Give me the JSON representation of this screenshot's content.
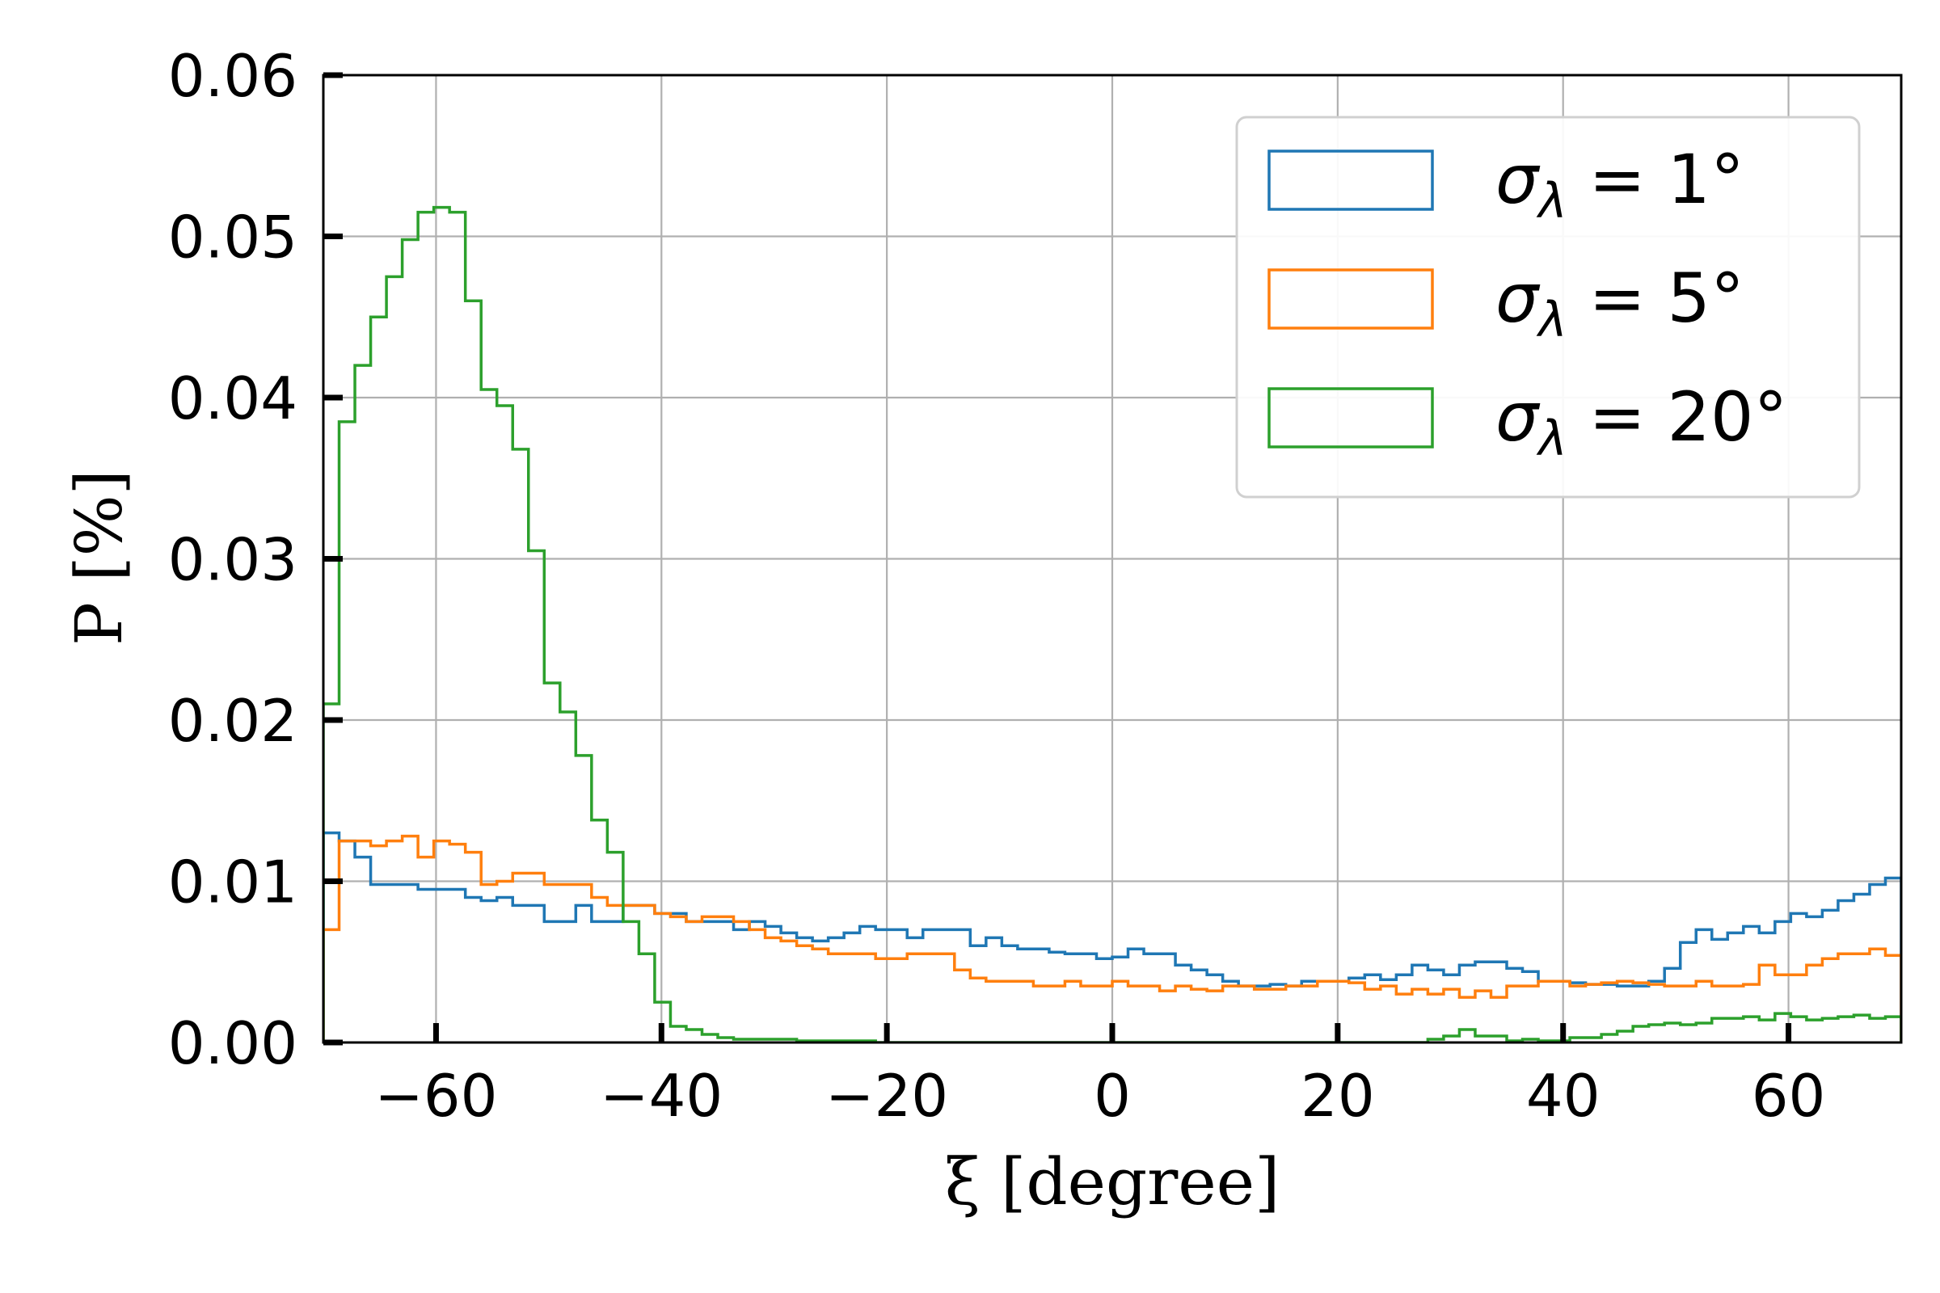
{
  "chart_data": {
    "type": "histogram",
    "xlabel": "ξ [degree]",
    "ylabel": "P [%]",
    "xlim": [
      -70,
      70
    ],
    "ylim": [
      0,
      0.06
    ],
    "xticks": [
      -60,
      -40,
      -20,
      0,
      20,
      40,
      60
    ],
    "yticks": [
      0.0,
      0.01,
      0.02,
      0.03,
      0.04,
      0.05,
      0.06
    ],
    "grid": true,
    "legend_position": "top-right",
    "bins": {
      "start": -70,
      "end": 70,
      "count": 100
    },
    "series": [
      {
        "name": "σ_λ = 1°",
        "color": "#1f77b4",
        "values": [
          0.013,
          0.0125,
          0.0115,
          0.0098,
          0.0098,
          0.0098,
          0.0095,
          0.0095,
          0.0095,
          0.009,
          0.0088,
          0.009,
          0.0085,
          0.0085,
          0.0075,
          0.0075,
          0.0085,
          0.0075,
          0.0075,
          0.0085,
          0.0085,
          0.008,
          0.008,
          0.0075,
          0.0075,
          0.0075,
          0.007,
          0.0075,
          0.0072,
          0.0068,
          0.0065,
          0.0063,
          0.0065,
          0.0068,
          0.0072,
          0.007,
          0.007,
          0.0065,
          0.007,
          0.007,
          0.007,
          0.006,
          0.0065,
          0.006,
          0.0058,
          0.0058,
          0.0056,
          0.0055,
          0.0055,
          0.0052,
          0.0053,
          0.0058,
          0.0055,
          0.0055,
          0.0048,
          0.0045,
          0.0042,
          0.0038,
          0.0035,
          0.0035,
          0.0036,
          0.0035,
          0.0038,
          0.0038,
          0.0038,
          0.004,
          0.0042,
          0.0039,
          0.0042,
          0.0048,
          0.0045,
          0.0042,
          0.0048,
          0.005,
          0.005,
          0.0046,
          0.0044,
          0.0038,
          0.0038,
          0.0037,
          0.0036,
          0.0036,
          0.0035,
          0.0035,
          0.0038,
          0.0046,
          0.0062,
          0.007,
          0.0064,
          0.0068,
          0.0072,
          0.0068,
          0.0075,
          0.008,
          0.0078,
          0.0082,
          0.0088,
          0.0092,
          0.0098,
          0.0102
        ]
      },
      {
        "name": "σ_λ = 5°",
        "color": "#ff7f0e",
        "values": [
          0.007,
          0.0125,
          0.0125,
          0.0122,
          0.0125,
          0.0128,
          0.0115,
          0.0125,
          0.0123,
          0.0118,
          0.0098,
          0.01,
          0.0105,
          0.0105,
          0.0098,
          0.0098,
          0.0098,
          0.009,
          0.0085,
          0.0085,
          0.0085,
          0.008,
          0.0078,
          0.0075,
          0.0078,
          0.0078,
          0.0075,
          0.007,
          0.0065,
          0.0063,
          0.006,
          0.0058,
          0.0055,
          0.0055,
          0.0055,
          0.0052,
          0.0052,
          0.0055,
          0.0055,
          0.0055,
          0.0045,
          0.004,
          0.0038,
          0.0038,
          0.0038,
          0.0035,
          0.0035,
          0.0038,
          0.0035,
          0.0035,
          0.0038,
          0.0035,
          0.0035,
          0.0032,
          0.0035,
          0.0033,
          0.0032,
          0.0035,
          0.0035,
          0.0033,
          0.0033,
          0.0035,
          0.0035,
          0.0038,
          0.0038,
          0.0037,
          0.0033,
          0.0035,
          0.003,
          0.0033,
          0.003,
          0.0033,
          0.0028,
          0.0032,
          0.0028,
          0.0035,
          0.0035,
          0.0038,
          0.0038,
          0.0035,
          0.0036,
          0.0037,
          0.0038,
          0.0037,
          0.0036,
          0.0035,
          0.0035,
          0.0038,
          0.0035,
          0.0035,
          0.0036,
          0.0048,
          0.0042,
          0.0042,
          0.0048,
          0.0052,
          0.0055,
          0.0055,
          0.0058,
          0.0054
        ]
      },
      {
        "name": "σ_λ = 20°",
        "color": "#2ca02c",
        "values": [
          0.021,
          0.0385,
          0.042,
          0.045,
          0.0475,
          0.0498,
          0.0515,
          0.0518,
          0.0515,
          0.046,
          0.0405,
          0.0395,
          0.0368,
          0.0305,
          0.0223,
          0.0205,
          0.0178,
          0.0138,
          0.0118,
          0.0075,
          0.0055,
          0.0025,
          0.001,
          0.0008,
          0.0005,
          0.0003,
          0.0002,
          0.0002,
          0.0002,
          0.0002,
          0.0001,
          0.0001,
          0.0001,
          0.0001,
          0.0001,
          0,
          0,
          0,
          0,
          0,
          0,
          0,
          0,
          0,
          0,
          0,
          0,
          0,
          0,
          0,
          0,
          0,
          0,
          0,
          0,
          0,
          0,
          0,
          0,
          0,
          0,
          0,
          0,
          0,
          0,
          0,
          0,
          0,
          0,
          0,
          0.0002,
          0.0004,
          0.0008,
          0.0004,
          0.0004,
          0.0001,
          0.0002,
          0.0001,
          0.0001,
          0.0003,
          0.0003,
          0.0005,
          0.0007,
          0.001,
          0.0011,
          0.0012,
          0.0011,
          0.0012,
          0.0015,
          0.0015,
          0.0016,
          0.0014,
          0.0018,
          0.0016,
          0.0014,
          0.0015,
          0.0016,
          0.0017,
          0.0015,
          0.0016
        ]
      }
    ]
  }
}
